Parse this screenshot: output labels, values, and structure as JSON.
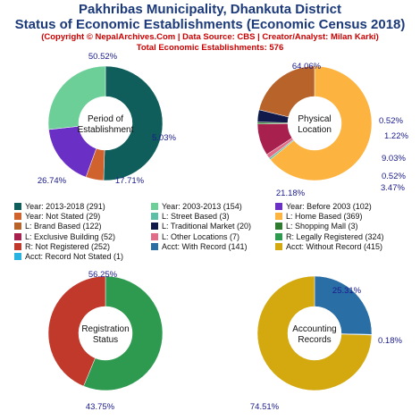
{
  "header": {
    "title_line1": "Pakhribas Municipality, Dhankuta District",
    "title_line2": "Status of Economic Establishments (Economic Census 2018)",
    "copyright": "(Copyright © NepalArchives.Com | Data Source: CBS | Creator/Analyst: Milan Karki)",
    "total": "Total Economic Establishments: 576"
  },
  "chart_data": [
    {
      "type": "pie",
      "title": "Period of Establishment",
      "title_lines": [
        "Period of",
        "Establishment"
      ],
      "slices": [
        {
          "label": "Year: 2013-2018",
          "value": 291,
          "percent_label": "50.52%",
          "color": "#0f5e5c"
        },
        {
          "label": "Year: Not Stated",
          "value": 29,
          "percent_label": "5.03%",
          "color": "#d0622e"
        },
        {
          "label": "Year: Before 2003",
          "value": 102,
          "percent_label": "17.71%",
          "color": "#6a2fc5"
        },
        {
          "label": "Year: 2003-2013",
          "value": 154,
          "percent_label": "26.74%",
          "color": "#6ccf98"
        }
      ]
    },
    {
      "type": "pie",
      "title": "Physical Location",
      "title_lines": [
        "Physical",
        "Location"
      ],
      "slices": [
        {
          "label": "L: Home Based",
          "value": 369,
          "percent_label": "64.06%",
          "color": "#fdb33f"
        },
        {
          "label": "L: Street Based",
          "value": 3,
          "percent_label": "0.52%",
          "color": "#5dbfa6"
        },
        {
          "label": "L: Other Locations",
          "value": 7,
          "percent_label": "1.22%",
          "color": "#e26b88"
        },
        {
          "label": "L: Exclusive Building",
          "value": 52,
          "percent_label": "9.03%",
          "color": "#a8204e"
        },
        {
          "label": "L: Shopping Mall",
          "value": 3,
          "percent_label": "0.52%",
          "color": "#2e7a2e"
        },
        {
          "label": "L: Traditional Market",
          "value": 20,
          "percent_label": "3.47%",
          "color": "#0f1a4a"
        },
        {
          "label": "L: Brand Based",
          "value": 122,
          "percent_label": "21.18%",
          "color": "#b8632a"
        }
      ]
    },
    {
      "type": "pie",
      "title": "Registration Status",
      "title_lines": [
        "Registration",
        "Status"
      ],
      "slices": [
        {
          "label": "R: Legally Registered",
          "value": 324,
          "percent_label": "56.25%",
          "color": "#2e9a4f"
        },
        {
          "label": "R: Not Registered",
          "value": 252,
          "percent_label": "43.75%",
          "color": "#c0392b"
        }
      ]
    },
    {
      "type": "pie",
      "title": "Accounting Records",
      "title_lines": [
        "Accounting",
        "Records"
      ],
      "slices": [
        {
          "label": "Acct: With Record",
          "value": 141,
          "percent_label": "25.31%",
          "color": "#2a6ea6"
        },
        {
          "label": "Acct: Record Not Stated",
          "value": 1,
          "percent_label": "0.18%",
          "color": "#28b3e0"
        },
        {
          "label": "Acct: Without Record",
          "value": 415,
          "percent_label": "74.51%",
          "color": "#d4a80f"
        }
      ]
    }
  ],
  "legend": {
    "rows": [
      [
        {
          "text": "Year: 2013-2018 (291)",
          "color": "#0f5e5c"
        },
        {
          "text": "Year: 2003-2013 (154)",
          "color": "#6ccf98"
        },
        {
          "text": "Year: Before 2003 (102)",
          "color": "#6a2fc5"
        }
      ],
      [
        {
          "text": "Year: Not Stated (29)",
          "color": "#d0622e"
        },
        {
          "text": "L: Street Based (3)",
          "color": "#5dbfa6"
        },
        {
          "text": "L: Home Based (369)",
          "color": "#fdb33f"
        }
      ],
      [
        {
          "text": "L: Brand Based (122)",
          "color": "#b8632a"
        },
        {
          "text": "L: Traditional Market (20)",
          "color": "#0f1a4a"
        },
        {
          "text": "L: Shopping Mall (3)",
          "color": "#2e7a2e"
        }
      ],
      [
        {
          "text": "L: Exclusive Building (52)",
          "color": "#a8204e"
        },
        {
          "text": "L: Other Locations (7)",
          "color": "#e26b88"
        },
        {
          "text": "R: Legally Registered (324)",
          "color": "#2e9a4f"
        }
      ],
      [
        {
          "text": "R: Not Registered (252)",
          "color": "#c0392b"
        },
        {
          "text": "Acct: With Record (141)",
          "color": "#2a6ea6"
        },
        {
          "text": "Acct: Without Record (415)",
          "color": "#d4a80f"
        }
      ],
      [
        {
          "text": "Acct: Record Not Stated (1)",
          "color": "#28b3e0"
        }
      ]
    ]
  }
}
